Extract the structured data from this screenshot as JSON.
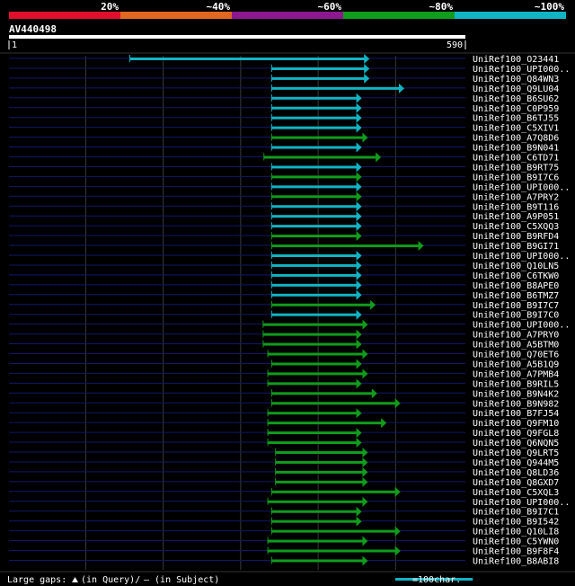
{
  "chart_data": {
    "type": "alignment-overview",
    "title": "AV440498",
    "query_length": 590,
    "axis": {
      "start_label": "1",
      "end_label": "590",
      "min": 1,
      "max": 590
    },
    "grid_positions": [
      100,
      200,
      300,
      400,
      500
    ],
    "identity_legend": [
      {
        "label": "20%",
        "color": "#e0102c"
      },
      {
        "label": "~40%",
        "color": "#e06820"
      },
      {
        "label": "~60%",
        "color": "#8c1890"
      },
      {
        "label": "~80%",
        "color": "#109c1c"
      },
      {
        "label": "~100%",
        "color": "#10b4c4"
      }
    ],
    "hits": [
      {
        "id": "UniRef100_O23441",
        "start": 157,
        "end": 465,
        "color": "#10b4c4"
      },
      {
        "id": "UniRef100_UPI000..",
        "start": 340,
        "end": 465,
        "color": "#10b4c4"
      },
      {
        "id": "UniRef100_Q84WN3",
        "start": 340,
        "end": 465,
        "color": "#10b4c4"
      },
      {
        "id": "UniRef100_Q9LU04",
        "start": 340,
        "end": 510,
        "color": "#10b4c4"
      },
      {
        "id": "UniRef100_B6SU62",
        "start": 340,
        "end": 455,
        "color": "#10b4c4"
      },
      {
        "id": "UniRef100_C0P959",
        "start": 340,
        "end": 455,
        "color": "#10b4c4"
      },
      {
        "id": "UniRef100_B6TJ55",
        "start": 340,
        "end": 455,
        "color": "#10b4c4"
      },
      {
        "id": "UniRef100_C5XIV1",
        "start": 340,
        "end": 455,
        "color": "#10b4c4"
      },
      {
        "id": "UniRef100_A7Q8D6",
        "start": 340,
        "end": 463,
        "color": "#109c1c"
      },
      {
        "id": "UniRef100_B9N041",
        "start": 340,
        "end": 455,
        "color": "#10b4c4"
      },
      {
        "id": "UniRef100_C6TD71",
        "start": 330,
        "end": 480,
        "color": "#109c1c"
      },
      {
        "id": "UniRef100_B9RT75",
        "start": 340,
        "end": 455,
        "color": "#10b4c4"
      },
      {
        "id": "UniRef100_B9I7C6",
        "start": 340,
        "end": 455,
        "color": "#109c1c"
      },
      {
        "id": "UniRef100_UPI000..",
        "start": 340,
        "end": 455,
        "color": "#10b4c4"
      },
      {
        "id": "UniRef100_A7PRY2",
        "start": 340,
        "end": 455,
        "color": "#109c1c"
      },
      {
        "id": "UniRef100_B9T116",
        "start": 340,
        "end": 455,
        "color": "#10b4c4"
      },
      {
        "id": "UniRef100_A9P051",
        "start": 340,
        "end": 455,
        "color": "#10b4c4"
      },
      {
        "id": "UniRef100_C5XQQ3",
        "start": 340,
        "end": 455,
        "color": "#10b4c4"
      },
      {
        "id": "UniRef100_B9RFD4",
        "start": 340,
        "end": 455,
        "color": "#109c1c"
      },
      {
        "id": "UniRef100_B9GI71",
        "start": 340,
        "end": 535,
        "color": "#109c1c"
      },
      {
        "id": "UniRef100_UPI000..",
        "start": 340,
        "end": 455,
        "color": "#10b4c4"
      },
      {
        "id": "UniRef100_Q10LN5",
        "start": 340,
        "end": 455,
        "color": "#10b4c4"
      },
      {
        "id": "UniRef100_C6TKW0",
        "start": 340,
        "end": 455,
        "color": "#10b4c4"
      },
      {
        "id": "UniRef100_B8APE0",
        "start": 340,
        "end": 455,
        "color": "#10b4c4"
      },
      {
        "id": "UniRef100_B6TMZ7",
        "start": 340,
        "end": 455,
        "color": "#10b4c4"
      },
      {
        "id": "UniRef100_B9I7C7",
        "start": 340,
        "end": 473,
        "color": "#109c1c"
      },
      {
        "id": "UniRef100_B9I7C0",
        "start": 340,
        "end": 455,
        "color": "#10b4c4"
      },
      {
        "id": "UniRef100_UPI000..",
        "start": 329,
        "end": 463,
        "color": "#109c1c"
      },
      {
        "id": "UniRef100_A7PRY0",
        "start": 329,
        "end": 455,
        "color": "#109c1c"
      },
      {
        "id": "UniRef100_A5BTM0",
        "start": 329,
        "end": 455,
        "color": "#109c1c"
      },
      {
        "id": "UniRef100_Q70ET6",
        "start": 335,
        "end": 463,
        "color": "#109c1c"
      },
      {
        "id": "UniRef100_A5B1Q9",
        "start": 340,
        "end": 455,
        "color": "#109c1c"
      },
      {
        "id": "UniRef100_A7PMB4",
        "start": 335,
        "end": 463,
        "color": "#109c1c"
      },
      {
        "id": "UniRef100_B9RIL5",
        "start": 335,
        "end": 455,
        "color": "#109c1c"
      },
      {
        "id": "UniRef100_B9N4K2",
        "start": 340,
        "end": 475,
        "color": "#109c1c"
      },
      {
        "id": "UniRef100_B9N982",
        "start": 340,
        "end": 505,
        "color": "#109c1c"
      },
      {
        "id": "UniRef100_B7FJ54",
        "start": 335,
        "end": 455,
        "color": "#109c1c"
      },
      {
        "id": "UniRef100_Q9FM10",
        "start": 335,
        "end": 487,
        "color": "#109c1c"
      },
      {
        "id": "UniRef100_Q9FGL8",
        "start": 335,
        "end": 455,
        "color": "#109c1c"
      },
      {
        "id": "UniRef100_Q6NQN5",
        "start": 335,
        "end": 455,
        "color": "#109c1c"
      },
      {
        "id": "UniRef100_Q9LRT5",
        "start": 345,
        "end": 463,
        "color": "#109c1c"
      },
      {
        "id": "UniRef100_Q944M5",
        "start": 345,
        "end": 463,
        "color": "#109c1c"
      },
      {
        "id": "UniRef100_Q8LD36",
        "start": 345,
        "end": 463,
        "color": "#109c1c"
      },
      {
        "id": "UniRef100_Q8GXD7",
        "start": 345,
        "end": 463,
        "color": "#109c1c"
      },
      {
        "id": "UniRef100_C5XQL3",
        "start": 340,
        "end": 505,
        "color": "#109c1c"
      },
      {
        "id": "UniRef100_UPI000..",
        "start": 335,
        "end": 463,
        "color": "#109c1c"
      },
      {
        "id": "UniRef100_B9I7C1",
        "start": 340,
        "end": 455,
        "color": "#109c1c"
      },
      {
        "id": "UniRef100_B9I542",
        "start": 340,
        "end": 455,
        "color": "#109c1c"
      },
      {
        "id": "UniRef100_Q10LI8",
        "start": 340,
        "end": 505,
        "color": "#109c1c"
      },
      {
        "id": "UniRef100_C5YWN0",
        "start": 335,
        "end": 463,
        "color": "#109c1c"
      },
      {
        "id": "UniRef100_B9F8F4",
        "start": 335,
        "end": 505,
        "color": "#109c1c"
      },
      {
        "id": "UniRef100_B8ABI8",
        "start": 340,
        "end": 463,
        "color": "#109c1c"
      }
    ],
    "footer": {
      "gaps_label": "Large gaps:",
      "query_gap": "(in Query)/",
      "subject_gap": "— (in Subject)",
      "scale_label": "=100char.",
      "scale_chars": 100
    }
  }
}
